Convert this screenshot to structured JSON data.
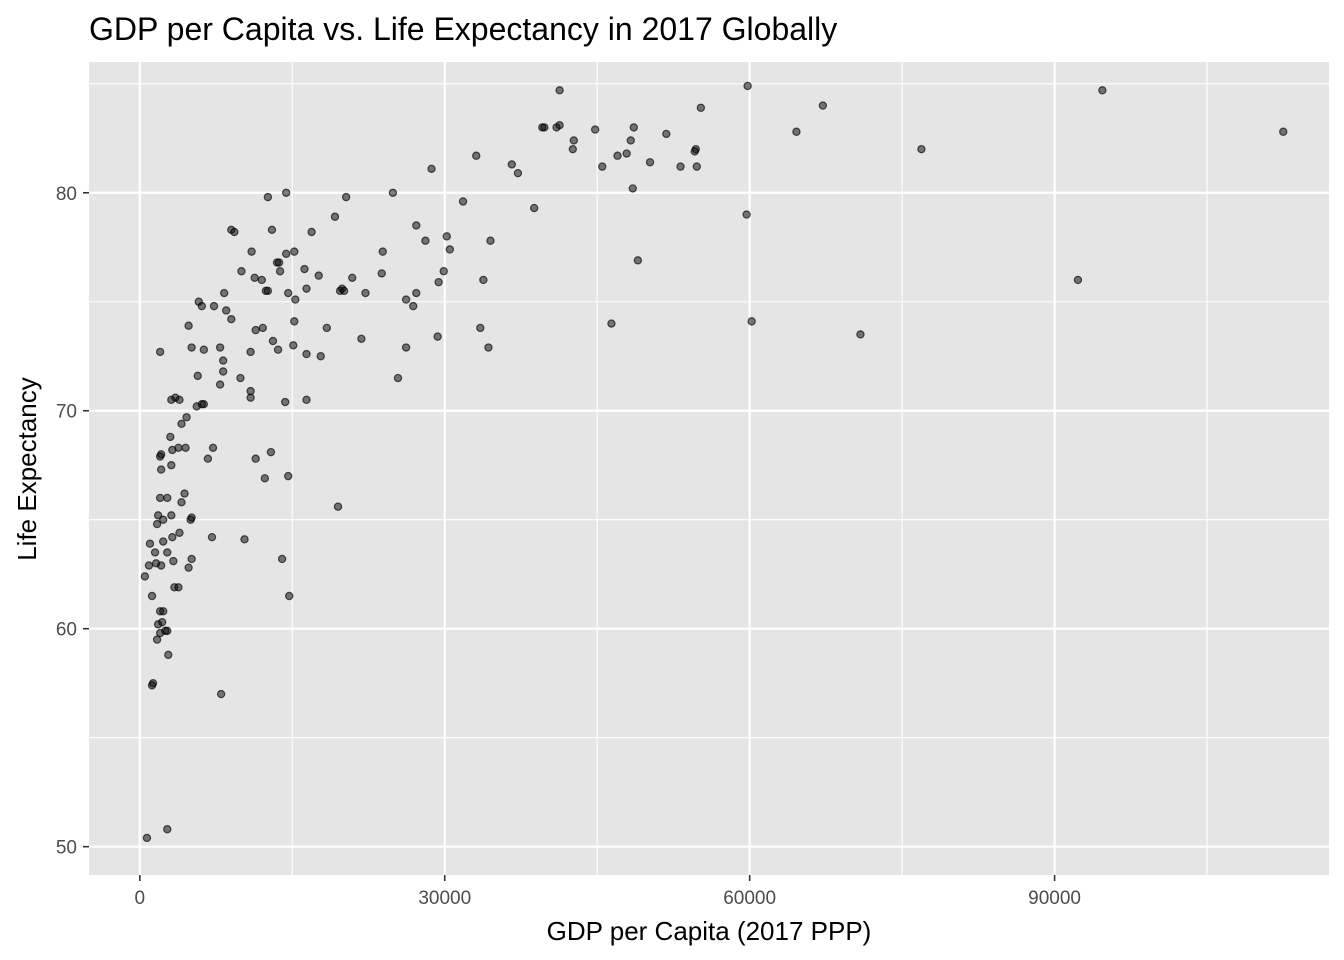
{
  "chart_data": {
    "type": "scatter",
    "title": "GDP per Capita vs. Life Expectancy in 2017 Globally",
    "xlabel": "GDP per Capita (2017 PPP)",
    "ylabel": "Life Expectancy",
    "xlim": [
      -5000,
      117000
    ],
    "ylim": [
      48.7,
      86.0
    ],
    "x_major_ticks": [
      0,
      30000,
      60000,
      90000
    ],
    "x_minor_ticks": [
      15000,
      45000,
      75000,
      105000
    ],
    "y_major_ticks": [
      50,
      60,
      70,
      80
    ],
    "y_minor_ticks": [
      55,
      65,
      75,
      85
    ],
    "grid": true,
    "panel_background": "#e5e5e5",
    "grid_color": "#ffffff",
    "point_color": "#000000",
    "point_alpha": 0.5,
    "points": [
      [
        700,
        50.4
      ],
      [
        2700,
        50.8
      ],
      [
        8000,
        57
      ],
      [
        1200,
        57.4
      ],
      [
        1300,
        57.5
      ],
      [
        1700,
        59.5
      ],
      [
        2000,
        59.8
      ],
      [
        2500,
        59.9
      ],
      [
        2700,
        59.9
      ],
      [
        2800,
        58.8
      ],
      [
        1800,
        60.2
      ],
      [
        2200,
        60.3
      ],
      [
        2000,
        60.8
      ],
      [
        2300,
        60.8
      ],
      [
        1200,
        61.5
      ],
      [
        14700,
        61.5
      ],
      [
        3400,
        61.9
      ],
      [
        3800,
        61.9
      ],
      [
        4800,
        62.8
      ],
      [
        5100,
        63.2
      ],
      [
        500,
        62.4
      ],
      [
        900,
        62.9
      ],
      [
        1600,
        63
      ],
      [
        2100,
        62.9
      ],
      [
        3300,
        63.1
      ],
      [
        14000,
        63.2
      ],
      [
        2700,
        63.5
      ],
      [
        1500,
        63.5
      ],
      [
        1000,
        63.9
      ],
      [
        2300,
        64
      ],
      [
        3200,
        64.2
      ],
      [
        3900,
        64.4
      ],
      [
        7100,
        64.2
      ],
      [
        10300,
        64.1
      ],
      [
        1700,
        64.8
      ],
      [
        1800,
        65.2
      ],
      [
        2300,
        65
      ],
      [
        3100,
        65.2
      ],
      [
        5000,
        65.0
      ],
      [
        5100,
        65.1
      ],
      [
        4100,
        65.8
      ],
      [
        4400,
        66.2
      ],
      [
        19500,
        65.6
      ],
      [
        2000,
        66.0
      ],
      [
        2700,
        66.0
      ],
      [
        12300,
        66.9
      ],
      [
        14600,
        67.0
      ],
      [
        2100,
        67.3
      ],
      [
        3100,
        67.5
      ],
      [
        6700,
        67.8
      ],
      [
        11400,
        67.8
      ],
      [
        12900,
        68.1
      ],
      [
        2000,
        67.9
      ],
      [
        2100,
        68.0
      ],
      [
        3200,
        68.2
      ],
      [
        3800,
        68.3
      ],
      [
        4500,
        68.3
      ],
      [
        7200,
        68.3
      ],
      [
        3000,
        68.8
      ],
      [
        4100,
        69.4
      ],
      [
        4600,
        69.7
      ],
      [
        3100,
        70.5
      ],
      [
        3500,
        70.6
      ],
      [
        3900,
        70.5
      ],
      [
        5600,
        70.2
      ],
      [
        6100,
        70.3
      ],
      [
        6300,
        70.3
      ],
      [
        10900,
        70.6
      ],
      [
        10900,
        70.9
      ],
      [
        14300,
        70.4
      ],
      [
        16400,
        70.5
      ],
      [
        25400,
        71.5
      ],
      [
        5700,
        71.6
      ],
      [
        7900,
        71.2
      ],
      [
        8200,
        71.8
      ],
      [
        8200,
        72.3
      ],
      [
        9900,
        71.5
      ],
      [
        2000,
        72.7
      ],
      [
        5100,
        72.9
      ],
      [
        6300,
        72.8
      ],
      [
        7900,
        72.9
      ],
      [
        10900,
        72.7
      ],
      [
        13600,
        72.8
      ],
      [
        15100,
        73.0
      ],
      [
        16400,
        72.6
      ],
      [
        17800,
        72.5
      ],
      [
        21800,
        73.3
      ],
      [
        26200,
        72.9
      ],
      [
        29300,
        73.4
      ],
      [
        34300,
        72.9
      ],
      [
        13100,
        73.2
      ],
      [
        4800,
        73.9
      ],
      [
        11400,
        73.7
      ],
      [
        12100,
        73.8
      ],
      [
        15200,
        74.1
      ],
      [
        18400,
        73.8
      ],
      [
        33500,
        73.8
      ],
      [
        46400,
        74.0
      ],
      [
        60200,
        74.1
      ],
      [
        70900,
        73.5
      ],
      [
        6100,
        74.8
      ],
      [
        7300,
        74.8
      ],
      [
        8500,
        74.6
      ],
      [
        9000,
        74.2
      ],
      [
        5800,
        75.0
      ],
      [
        8300,
        75.4
      ],
      [
        12400,
        75.5
      ],
      [
        12600,
        75.5
      ],
      [
        14600,
        75.4
      ],
      [
        15300,
        75.1
      ],
      [
        19700,
        75.5
      ],
      [
        19900,
        75.6
      ],
      [
        22200,
        75.4
      ],
      [
        27200,
        75.4
      ],
      [
        26200,
        75.1
      ],
      [
        26900,
        74.8
      ],
      [
        29400,
        75.9
      ],
      [
        33800,
        76.0
      ],
      [
        92300,
        76.0
      ],
      [
        10000,
        76.4
      ],
      [
        11300,
        76.1
      ],
      [
        12000,
        76.0
      ],
      [
        13800,
        76.4
      ],
      [
        16400,
        75.6
      ],
      [
        17600,
        76.2
      ],
      [
        20100,
        75.5
      ],
      [
        23800,
        76.3
      ],
      [
        29900,
        76.4
      ],
      [
        11000,
        77.3
      ],
      [
        13500,
        76.8
      ],
      [
        13700,
        76.8
      ],
      [
        14400,
        77.2
      ],
      [
        15200,
        77.3
      ],
      [
        16200,
        76.5
      ],
      [
        20900,
        76.1
      ],
      [
        23900,
        77.3
      ],
      [
        30500,
        77.4
      ],
      [
        49000,
        76.9
      ],
      [
        9000,
        78.3
      ],
      [
        9300,
        78.2
      ],
      [
        13000,
        78.3
      ],
      [
        16900,
        78.2
      ],
      [
        19200,
        78.9
      ],
      [
        27200,
        78.5
      ],
      [
        28100,
        77.8
      ],
      [
        30200,
        78.0
      ],
      [
        34500,
        77.8
      ],
      [
        12600,
        79.8
      ],
      [
        14400,
        80.0
      ],
      [
        20300,
        79.8
      ],
      [
        24900,
        80.0
      ],
      [
        31800,
        79.6
      ],
      [
        38800,
        79.3
      ],
      [
        48500,
        80.2
      ],
      [
        59700,
        79.0
      ],
      [
        28700,
        81.1
      ],
      [
        33100,
        81.7
      ],
      [
        36600,
        81.3
      ],
      [
        37200,
        80.9
      ],
      [
        45500,
        81.2
      ],
      [
        47000,
        81.7
      ],
      [
        47900,
        81.8
      ],
      [
        50200,
        81.4
      ],
      [
        53200,
        81.2
      ],
      [
        54800,
        81.2
      ],
      [
        54600,
        81.9
      ],
      [
        54700,
        82.0
      ],
      [
        42600,
        82.0
      ],
      [
        42700,
        82.4
      ],
      [
        48300,
        82.4
      ],
      [
        48600,
        83.0
      ],
      [
        51800,
        82.7
      ],
      [
        39600,
        83.0
      ],
      [
        39800,
        83.0
      ],
      [
        41000,
        83.0
      ],
      [
        41300,
        83.1
      ],
      [
        44800,
        82.9
      ],
      [
        64600,
        82.8
      ],
      [
        76900,
        82.0
      ],
      [
        112500,
        82.8
      ],
      [
        55200,
        83.9
      ],
      [
        67200,
        84.0
      ],
      [
        41300,
        84.7
      ],
      [
        59800,
        84.9
      ],
      [
        94700,
        84.7
      ]
    ]
  }
}
